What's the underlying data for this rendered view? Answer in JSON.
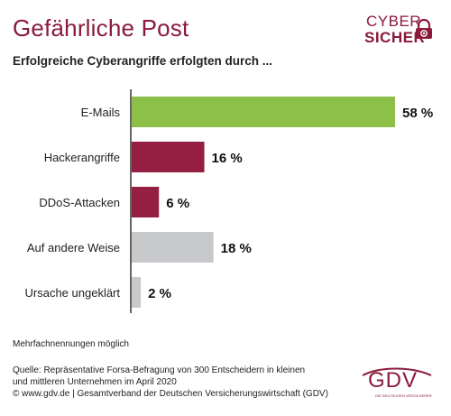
{
  "header": {
    "title": "Gefährliche Post",
    "subtitle": "Erfolgreiche Cyberangriffe erfolgten durch ..."
  },
  "logo_cyber": {
    "line1": "CYBER",
    "line2": "SICHER",
    "icon": "lock-at-icon",
    "color": "#8b1a3c"
  },
  "chart_data": {
    "type": "bar",
    "orientation": "horizontal",
    "categories": [
      "E-Mails",
      "Hackerangriffe",
      "DDoS-Attacken",
      "Auf andere Weise",
      "Ursache ungeklärt"
    ],
    "values": [
      58,
      16,
      6,
      18,
      2
    ],
    "value_labels": [
      "58 %",
      "16 %",
      "6 %",
      "18 %",
      "2 %"
    ],
    "colors": [
      "#8dc048",
      "#951f43",
      "#951f43",
      "#c8c9cb",
      "#c8c9cb"
    ],
    "xlim": [
      0,
      58
    ],
    "grid": false,
    "legend": "none"
  },
  "footer": {
    "note": "Mehrfachnennungen möglich",
    "source_line1": "Quelle: Repräsentative Forsa-Befragung von 300 Entscheidern in kleinen",
    "source_line2": "und mittleren Unternehmen im April 2020",
    "source_line3": "© www.gdv.de | Gesamtverband der Deutschen Versicherungswirtschaft (GDV)"
  },
  "logo_gdv": {
    "text": "GDV",
    "small": "DIE DEUTSCHEN VERSICHERER",
    "color": "#8b1a3c"
  }
}
